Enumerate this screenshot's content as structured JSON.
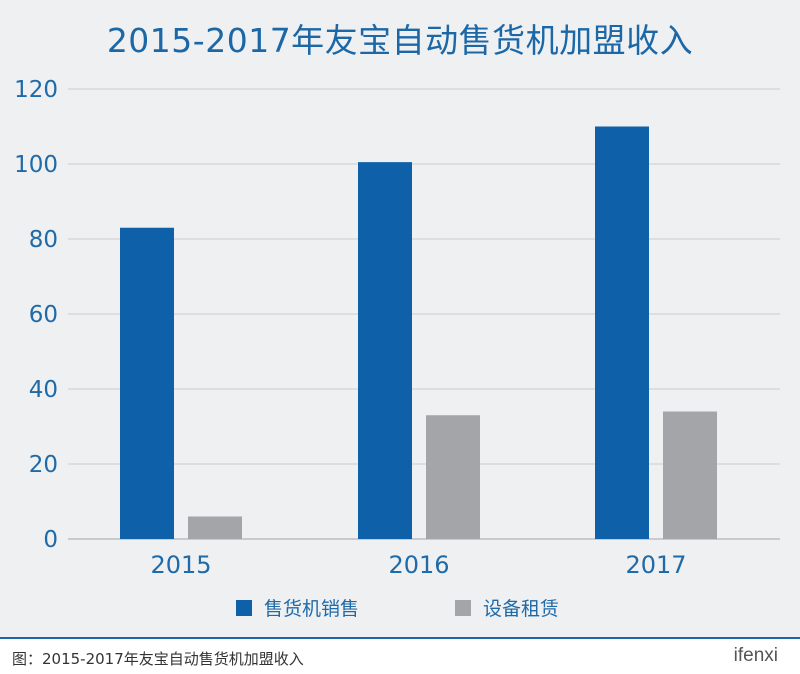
{
  "chart_data": {
    "type": "bar",
    "title": "2015-2017年友宝自动售货机加盟收入",
    "categories": [
      "2015",
      "2016",
      "2017"
    ],
    "series": [
      {
        "name": "售货机销售",
        "values": [
          83,
          100.5,
          110
        ],
        "color": "#0e60a8"
      },
      {
        "name": "设备租赁",
        "values": [
          6,
          33,
          34
        ],
        "color": "#a4a5a8"
      }
    ],
    "yticks": [
      0,
      20,
      40,
      60,
      80,
      100,
      120
    ],
    "ylim": [
      0,
      120
    ],
    "grid": true,
    "legend_position": "bottom"
  },
  "footer": {
    "caption": "图：2015-2017年友宝自动售货机加盟收入",
    "brand": "ifenxi"
  }
}
